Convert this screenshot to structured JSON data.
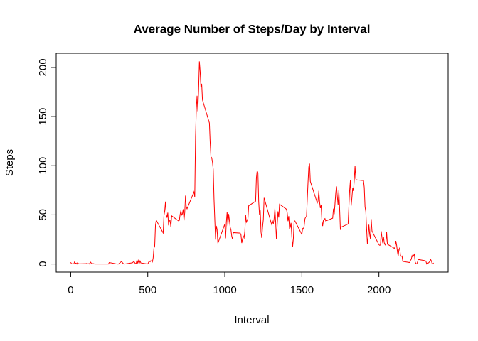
{
  "chart_data": {
    "type": "line",
    "title": "Average Number of Steps/Day by Interval",
    "x_label": "Interval",
    "y_label": "Steps",
    "xlim": [
      -94.2,
      2449.2
    ],
    "xticks": [
      0,
      500,
      1000,
      1500,
      2000
    ],
    "ylim": [
      -8.25,
      214.42
    ],
    "yticks": [
      0,
      50,
      100,
      150,
      200
    ],
    "x": [
      0,
      5,
      10,
      15,
      20,
      25,
      30,
      35,
      40,
      45,
      50,
      55,
      100,
      105,
      110,
      115,
      120,
      125,
      130,
      135,
      140,
      145,
      150,
      155,
      200,
      230,
      245,
      250,
      300,
      310,
      330,
      340,
      350,
      400,
      410,
      420,
      425,
      430,
      435,
      440,
      445,
      450,
      455,
      500,
      505,
      510,
      515,
      520,
      525,
      530,
      535,
      540,
      545,
      550,
      555,
      600,
      605,
      610,
      615,
      620,
      625,
      630,
      635,
      640,
      645,
      650,
      655,
      700,
      705,
      710,
      715,
      720,
      725,
      730,
      735,
      740,
      745,
      750,
      755,
      800,
      805,
      810,
      815,
      820,
      825,
      830,
      835,
      840,
      845,
      850,
      855,
      900,
      905,
      910,
      915,
      920,
      925,
      930,
      935,
      940,
      945,
      950,
      955,
      1000,
      1005,
      1010,
      1015,
      1020,
      1025,
      1030,
      1035,
      1040,
      1045,
      1050,
      1055,
      1100,
      1105,
      1110,
      1115,
      1120,
      1125,
      1130,
      1135,
      1140,
      1145,
      1150,
      1155,
      1200,
      1205,
      1210,
      1215,
      1220,
      1225,
      1230,
      1235,
      1240,
      1245,
      1250,
      1255,
      1300,
      1305,
      1310,
      1315,
      1320,
      1325,
      1330,
      1335,
      1340,
      1345,
      1350,
      1355,
      1400,
      1405,
      1410,
      1415,
      1420,
      1425,
      1430,
      1435,
      1440,
      1445,
      1450,
      1455,
      1500,
      1505,
      1510,
      1515,
      1520,
      1525,
      1530,
      1535,
      1540,
      1545,
      1550,
      1555,
      1600,
      1605,
      1610,
      1615,
      1620,
      1625,
      1630,
      1635,
      1640,
      1645,
      1650,
      1655,
      1700,
      1705,
      1710,
      1715,
      1720,
      1725,
      1730,
      1735,
      1740,
      1745,
      1750,
      1755,
      1800,
      1805,
      1810,
      1815,
      1820,
      1825,
      1830,
      1835,
      1840,
      1845,
      1850,
      1855,
      1900,
      1905,
      1910,
      1915,
      1920,
      1925,
      1930,
      1935,
      1940,
      1945,
      1950,
      1955,
      2000,
      2005,
      2010,
      2015,
      2020,
      2025,
      2030,
      2035,
      2040,
      2045,
      2050,
      2055,
      2100,
      2105,
      2110,
      2115,
      2120,
      2125,
      2130,
      2135,
      2140,
      2145,
      2150,
      2155,
      2200,
      2205,
      2210,
      2215,
      2220,
      2225,
      2230,
      2235,
      2240,
      2245,
      2250,
      2255,
      2300,
      2305,
      2310,
      2315,
      2320,
      2325,
      2330,
      2335,
      2340,
      2345,
      2350,
      2355
    ],
    "series": [
      {
        "name": "Steps",
        "color": "#ff0000",
        "values": [
          1.72,
          0.34,
          0.13,
          0.15,
          0.08,
          2.09,
          0.53,
          0.87,
          0,
          1.47,
          0.3,
          0.13,
          0.32,
          0.68,
          0.15,
          0.34,
          0,
          1.11,
          1.83,
          0.17,
          0.17,
          0.38,
          0.26,
          0,
          0,
          0,
          0,
          1.5,
          0,
          0,
          2.6,
          0.5,
          0,
          1.2,
          2.6,
          0.3,
          0.8,
          4.1,
          0.7,
          3.5,
          0.8,
          3.1,
          1.1,
          0,
          1.6,
          3.0,
          2.25,
          3.32,
          2.96,
          2.09,
          6.06,
          16.0,
          18.3,
          39.5,
          44.5,
          31.5,
          49.3,
          53.8,
          63.5,
          50.0,
          47.1,
          52.2,
          39.3,
          44.0,
          44.2,
          37.4,
          49.0,
          43.8,
          44.4,
          50.5,
          54.5,
          49.9,
          51.0,
          55.7,
          44.3,
          52.3,
          69.5,
          57.8,
          56.2,
          73.4,
          68.2,
          129.4,
          157.5,
          171.2,
          155.4,
          177.3,
          206.2,
          195.9,
          179.6,
          183.4,
          167.0,
          143.5,
          124.0,
          109.1,
          108.1,
          103.7,
          95.97,
          66.2,
          45.2,
          24.8,
          38.8,
          35.0,
          21.1,
          40.6,
          26.1,
          42.4,
          52.7,
          38.9,
          50.8,
          44.3,
          37.4,
          34.7,
          28.3,
          25.1,
          31.9,
          31.4,
          29.7,
          21.3,
          25.5,
          28.4,
          26.5,
          33.4,
          50.0,
          42.0,
          44.6,
          46.0,
          59.2,
          63.9,
          87.7,
          94.8,
          92.8,
          63.4,
          50.2,
          54.5,
          32.4,
          26.5,
          37.7,
          45.1,
          67.3,
          42.3,
          39.9,
          43.3,
          40.98,
          46.2,
          56.4,
          42.8,
          25.1,
          39.97,
          53.5,
          47.3,
          60.8,
          55.8,
          51.96,
          43.6,
          48.7,
          35.5,
          37.5,
          41.8,
          27.5,
          17.1,
          26.1,
          43.6,
          43.8,
          30.0,
          36.1,
          35.5,
          38.8,
          45.96,
          47.8,
          48.1,
          65.3,
          82.9,
          98.7,
          102.1,
          83.96,
          62.1,
          64.1,
          74.5,
          63.2,
          56.9,
          59.8,
          43.9,
          38.6,
          44.7,
          45.5,
          46.2,
          43.7,
          46.6,
          56.3,
          50.7,
          61.2,
          72.7,
          78.9,
          68.9,
          59.7,
          75.1,
          56.5,
          34.8,
          37.5,
          40.7,
          58.0,
          74.7,
          85.3,
          59.3,
          67.8,
          77.7,
          74.2,
          85.3,
          99.5,
          86.6,
          85.6,
          84.9,
          77.8,
          58.0,
          53.4,
          36.3,
          20.7,
          27.4,
          40.0,
          30.2,
          25.5,
          45.7,
          33.5,
          19.6,
          19.0,
          19.3,
          33.3,
          26.8,
          21.2,
          27.3,
          21.3,
          19.5,
          21.3,
          32.3,
          20.2,
          15.9,
          17.2,
          23.5,
          19.2,
          12.5,
          8.0,
          14.7,
          16.3,
          8.7,
          7.8,
          8.1,
          2.6,
          1.5,
          3.7,
          4.8,
          8.5,
          7.1,
          8.7,
          9.8,
          2.2,
          0.3,
          0.1,
          1.6,
          4.6,
          3.3,
          2.8,
          0,
          0.8,
          0.96,
          1.6,
          2.6,
          4.7,
          3.3,
          0.6,
          0.2,
          1.1
        ]
      }
    ]
  }
}
